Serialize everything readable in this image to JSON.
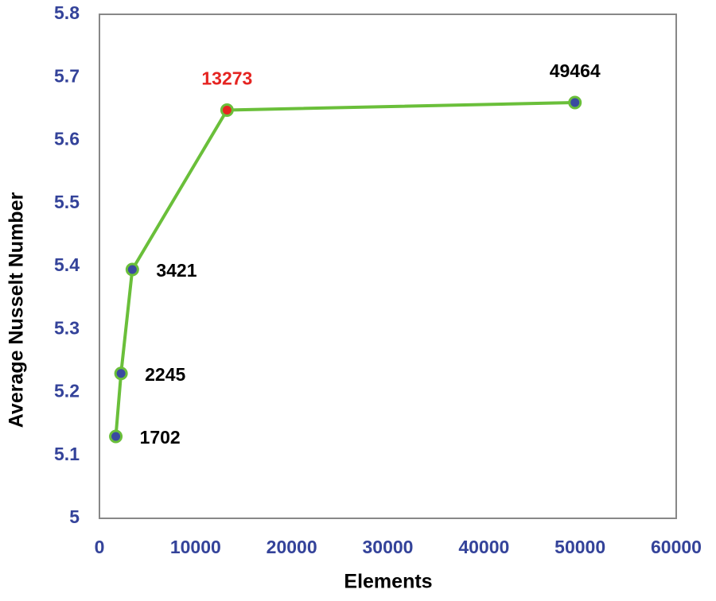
{
  "chart_data": {
    "type": "line",
    "x_label": "Elements",
    "y_label": "Average Nusselt Number",
    "x": [
      1702,
      2245,
      3421,
      13273,
      49464
    ],
    "series": [
      {
        "color": "#6abf3a",
        "values": [
          5.13,
          5.23,
          5.395,
          5.648,
          5.66
        ],
        "point_colors": [
          "#3a4aa0",
          "#3a4aa0",
          "#3a4aa0",
          "#e52421",
          "#3a4aa0"
        ]
      }
    ],
    "xlim": [
      0,
      60000
    ],
    "xticks": [
      0,
      10000,
      20000,
      30000,
      40000,
      50000,
      60000
    ],
    "ylim": [
      5,
      5.8
    ],
    "yticks": [
      5,
      5.1,
      5.2,
      5.3,
      5.4,
      5.5,
      5.6,
      5.7,
      5.8
    ],
    "grid": false
  }
}
